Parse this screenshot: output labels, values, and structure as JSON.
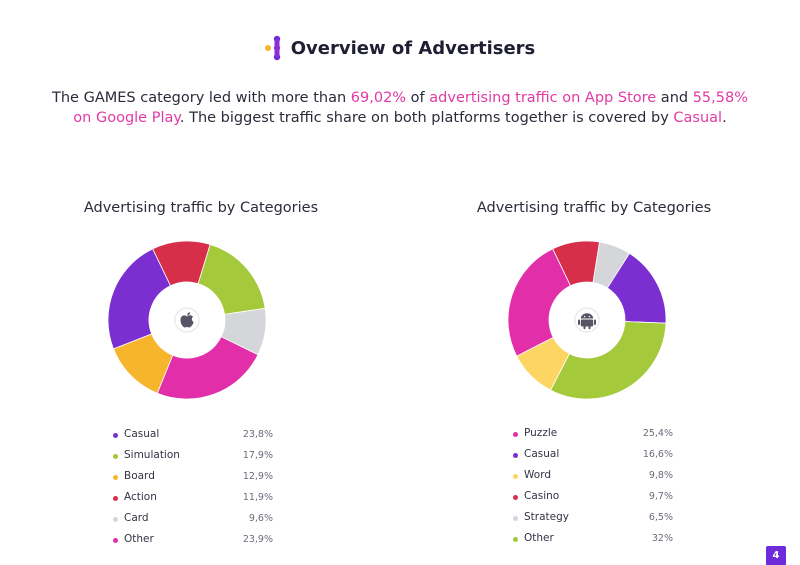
{
  "header": {
    "title": "Overview of Advertisers"
  },
  "intro": {
    "t1": "The GAMES category led with more than ",
    "h1": "69,02%",
    "t2": " of ",
    "h2": "advertising traffic on App Store",
    "t3": " and ",
    "h3": "55,58% on Google Play",
    "t4": ". The biggest traffic share on both platforms together is covered by ",
    "h4": "Casual",
    "t5": "."
  },
  "colors": {
    "accent": "#e23aa5",
    "brand": "#6d2bd9"
  },
  "chart_data": [
    {
      "type": "pie",
      "platform_icon": "apple-icon",
      "title": "Advertising traffic by Categories",
      "categories": [
        "Casual",
        "Simulation",
        "Board",
        "Action",
        "Card",
        "Other"
      ],
      "values": [
        23.8,
        17.9,
        12.9,
        11.9,
        9.6,
        23.9
      ],
      "value_labels": [
        "23,8%",
        "17,9%",
        "12,9%",
        "11,9%",
        "9,6%",
        "23,9%"
      ],
      "colors": [
        "#7b2fd0",
        "#a4c93a",
        "#f7b52c",
        "#d72f4a",
        "#d4d6da",
        "#e22fa9"
      ],
      "legend": "bottom",
      "ring_order": [
        "Action",
        "Simulation",
        "Card",
        "Other",
        "Board",
        "Casual"
      ]
    },
    {
      "type": "pie",
      "platform_icon": "android-icon",
      "title": "Advertising traffic by Categories",
      "categories": [
        "Puzzle",
        "Casual",
        "Word",
        "Casino",
        "Strategy",
        "Other"
      ],
      "values": [
        25.4,
        16.6,
        9.8,
        9.7,
        6.5,
        32
      ],
      "value_labels": [
        "25,4%",
        "16,6%",
        "9,8%",
        "9,7%",
        "6,5%",
        "32%"
      ],
      "colors": [
        "#e22fa9",
        "#7b2fd0",
        "#fdd563",
        "#d72f4a",
        "#d4d6da",
        "#a4c93a"
      ],
      "legend": "bottom",
      "ring_order": [
        "Casino",
        "Strategy",
        "Casual",
        "Other",
        "Word",
        "Puzzle"
      ]
    }
  ],
  "page": {
    "number": "4"
  }
}
